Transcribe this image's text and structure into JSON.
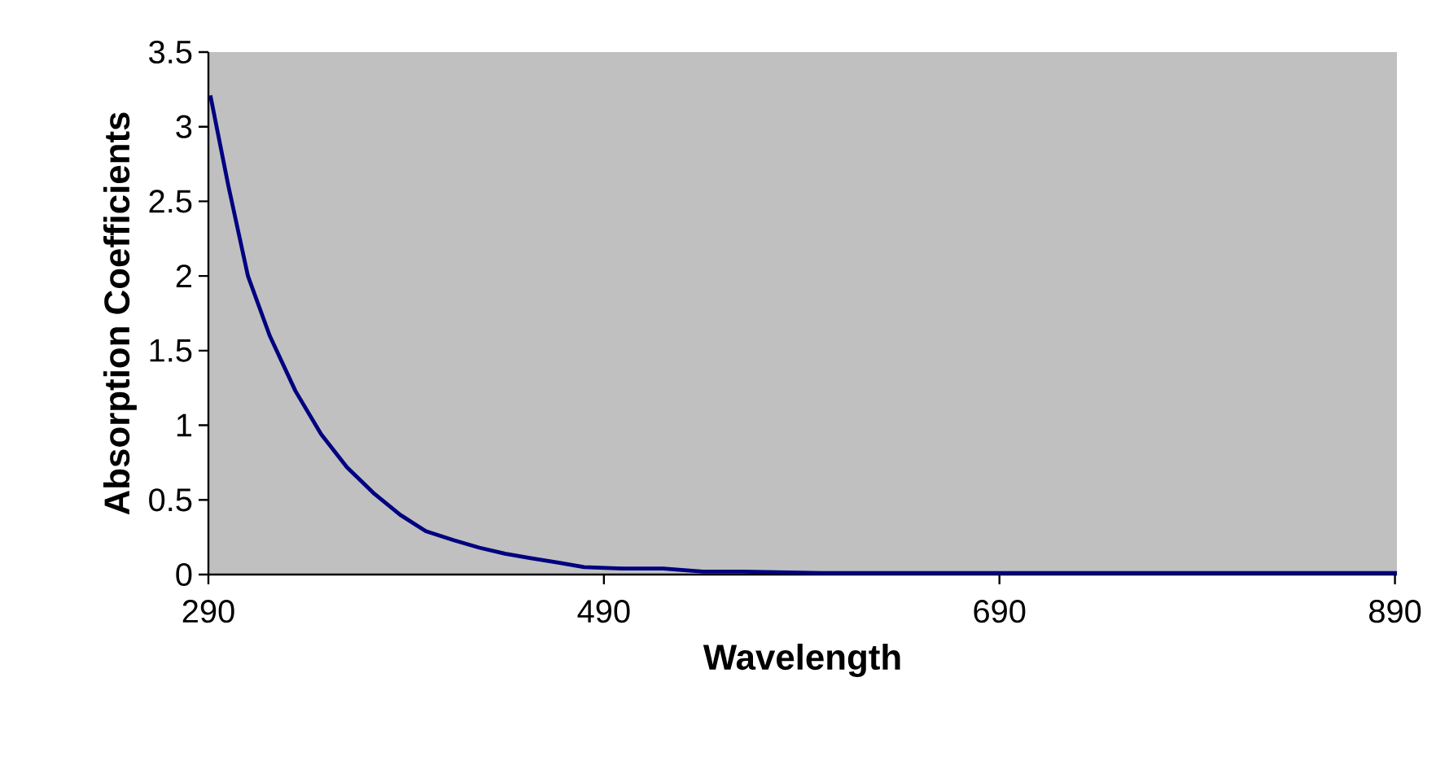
{
  "chart_data": {
    "type": "line",
    "xlabel": "Wavelength",
    "ylabel": "Absorption Coefficients",
    "x": [
      291,
      300,
      310,
      321,
      334,
      347,
      360,
      374,
      387,
      400,
      414,
      427,
      440,
      453,
      467,
      480,
      500,
      520,
      540,
      560,
      600,
      650,
      700,
      750,
      800,
      850,
      891
    ],
    "series": [
      {
        "color": "#000080",
        "values": [
          3.21,
          2.61,
          2.0,
          1.6,
          1.23,
          0.94,
          0.72,
          0.54,
          0.4,
          0.29,
          0.23,
          0.18,
          0.14,
          0.11,
          0.08,
          0.05,
          0.04,
          0.04,
          0.02,
          0.02,
          0.01,
          0.01,
          0.01,
          0.01,
          0.01,
          0.01,
          0.01
        ]
      }
    ],
    "xlim": [
      290,
      891
    ],
    "ylim": [
      0,
      3.5
    ],
    "xticks": [
      290,
      490,
      690,
      890
    ],
    "yticks": [
      0,
      0.5,
      1,
      1.5,
      2,
      2.5,
      3,
      3.5
    ],
    "grid": false,
    "marker": "none",
    "line_style": "solid"
  }
}
